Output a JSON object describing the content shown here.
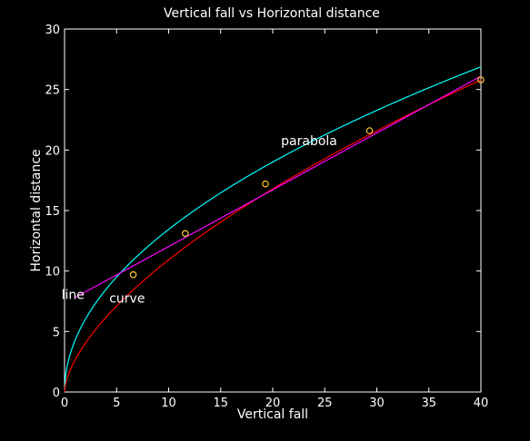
{
  "chart_data": {
    "type": "line",
    "title": "Vertical fall vs Horizontal distance",
    "xlabel": "Vertical fall",
    "ylabel": "Horizontal distance",
    "xlim": [
      0,
      40
    ],
    "ylim": [
      0,
      30
    ],
    "xticks": [
      0,
      5,
      10,
      15,
      20,
      25,
      30,
      35,
      40
    ],
    "yticks": [
      0,
      5,
      10,
      15,
      20,
      25,
      30
    ],
    "grid": false,
    "background": "#000000",
    "axes_color": "#ffffff",
    "series": [
      {
        "color": "#00ffff",
        "model": "a*sqrt(x)",
        "a": 4.25,
        "x": [
          0,
          0.5,
          1,
          2,
          3,
          4,
          5,
          6,
          8,
          10,
          12,
          14,
          16,
          18,
          20,
          22,
          24,
          26,
          28,
          30,
          32,
          34,
          36,
          38,
          40
        ],
        "y": [
          0,
          3.01,
          4.25,
          6.01,
          7.36,
          8.5,
          9.5,
          10.41,
          12.02,
          13.44,
          14.72,
          15.9,
          17.0,
          18.03,
          19.01,
          19.93,
          20.82,
          21.67,
          22.49,
          23.28,
          24.04,
          24.78,
          25.5,
          26.2,
          26.88
        ]
      },
      {
        "color": "#ff0000",
        "model": "a*x^b",
        "a": 2.62,
        "b": 0.62,
        "x": [
          0,
          0.5,
          1,
          2,
          3,
          4,
          5,
          6,
          8,
          10,
          12,
          14,
          16,
          18,
          20,
          22,
          24,
          26,
          28,
          30,
          32,
          34,
          36,
          38,
          40
        ],
        "y": [
          0,
          1.7,
          2.62,
          4.04,
          5.25,
          6.23,
          7.21,
          8.11,
          9.76,
          10.91,
          12.15,
          13.3,
          14.39,
          15.43,
          16.41,
          17.35,
          18.26,
          19.14,
          19.99,
          20.81,
          21.62,
          22.4,
          23.16,
          23.91,
          24.63
        ]
      },
      {
        "color": "#ff00ff",
        "model": "m*x+c",
        "x": [
          1,
          40
        ],
        "y": [
          7.8,
          26.1
        ]
      },
      {
        "color": "#ffcc33",
        "marker": "circle",
        "line": false,
        "x": [
          6.6,
          11.6,
          19.3,
          29.3,
          40
        ],
        "y": [
          9.7,
          13.1,
          17.2,
          21.6,
          25.8
        ]
      }
    ],
    "annotations": [
      {
        "text": "parabola",
        "x": 20.8,
        "y": 20.4
      },
      {
        "text": "line",
        "x": -0.3,
        "y": 7.7
      },
      {
        "text": "curve",
        "x": 4.3,
        "y": 7.4
      }
    ]
  }
}
